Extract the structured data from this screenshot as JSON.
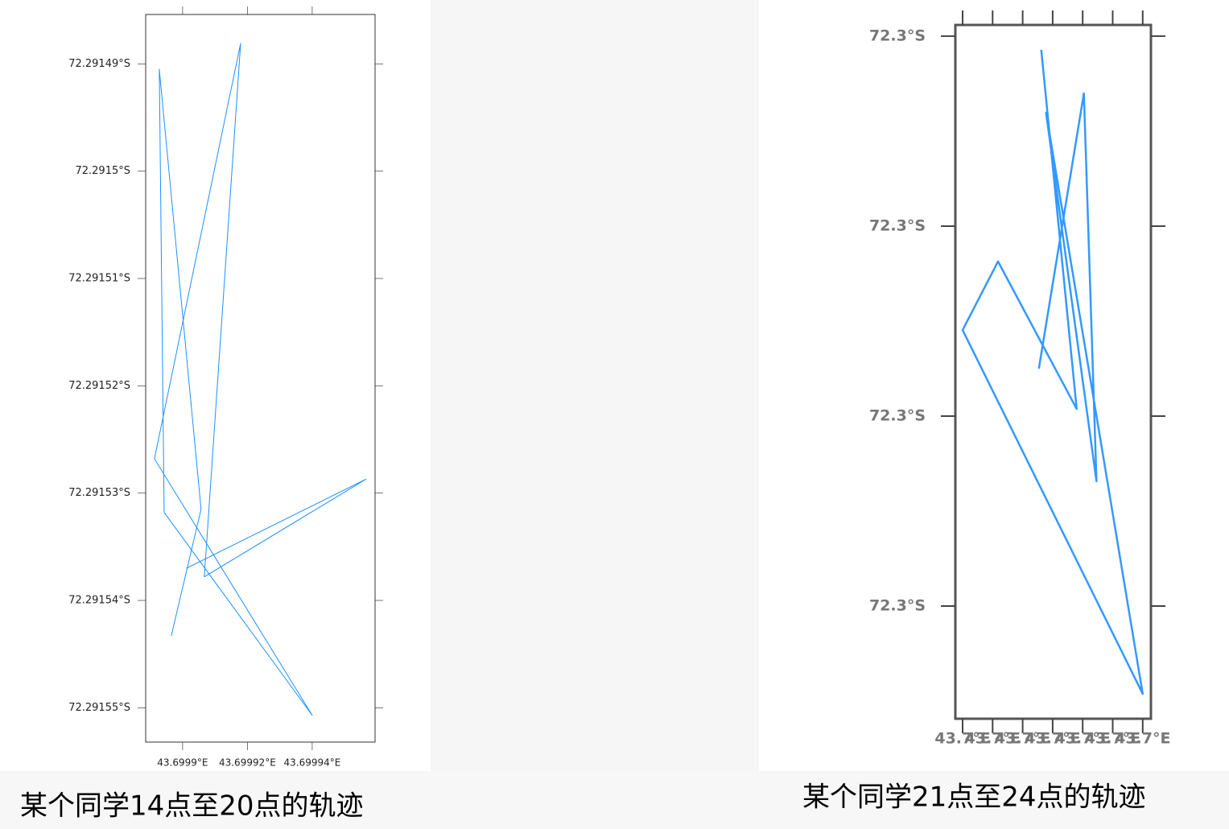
{
  "chart_data": [
    {
      "type": "line",
      "caption": "某个同学14点至20点的轨迹",
      "series": [
        {
          "color": "#1e90ff",
          "x": [
            43.6998965,
            43.6999057,
            43.6998928,
            43.6998943,
            43.69994,
            43.6998913,
            43.6999179,
            43.6999067,
            43.6999566,
            43.6999012
          ],
          "values": [
            -72.2915433,
            -72.2915315,
            -72.2914905,
            -72.2915318,
            -72.2915507,
            -72.2915268,
            -72.2914881,
            -72.2915378,
            -72.2915287,
            -72.291537
          ]
        }
      ],
      "xlim": [
        43.6998886,
        43.6999594
      ],
      "ylim": [
        -72.2915532,
        -72.2914854
      ],
      "xticks": [
        {
          "value": 43.6999,
          "label": "43.6999°E"
        },
        {
          "value": 43.69992,
          "label": "43.69992°E"
        },
        {
          "value": 43.69994,
          "label": "43.69994°E"
        }
      ],
      "yticks": [
        {
          "value": -72.29149,
          "label": "72.29149°S"
        },
        {
          "value": -72.2915,
          "label": "72.2915°S"
        },
        {
          "value": -72.29151,
          "label": "72.29151°S"
        },
        {
          "value": -72.29152,
          "label": "72.29152°S"
        },
        {
          "value": -72.29153,
          "label": "72.29153°S"
        },
        {
          "value": -72.29154,
          "label": "72.29154°S"
        },
        {
          "value": -72.29155,
          "label": "72.29155°S"
        }
      ]
    },
    {
      "type": "line",
      "caption": "某个同学21点至24点的轨迹",
      "series": [
        {
          "color": "#3399ff",
          "x": [
            43.699831,
            43.69989,
            43.699759,
            43.6997,
            43.7,
            43.699839,
            43.699923,
            43.699902,
            43.699827
          ],
          "values": [
            -72.2998072,
            -72.2999962,
            -72.2999186,
            -72.2999547,
            -72.3001462,
            -72.2998403,
            -72.3000343,
            -72.2998301,
            -72.299975
          ]
        }
      ],
      "xlim": [
        43.6996879,
        43.7000137
      ],
      "ylim": [
        -72.3001593,
        -72.2997941
      ],
      "xticks": [
        {
          "value": 43.6997,
          "label": "43.7°E"
        },
        {
          "value": 43.69975,
          "label": "43.7°E"
        },
        {
          "value": 43.6998,
          "label": "43.7°E"
        },
        {
          "value": 43.69985,
          "label": "43.7°E"
        },
        {
          "value": 43.6999,
          "label": "43.7°E"
        },
        {
          "value": 43.69995,
          "label": "43.7°E"
        },
        {
          "value": 43.7,
          "label": "43.7°E"
        }
      ],
      "yticks": [
        {
          "value": -72.2998,
          "label": "72.3°S"
        },
        {
          "value": -72.2999,
          "label": "72.3°S"
        },
        {
          "value": -72.3,
          "label": "72.3°S"
        },
        {
          "value": -72.3001,
          "label": "72.3°S"
        }
      ]
    }
  ]
}
